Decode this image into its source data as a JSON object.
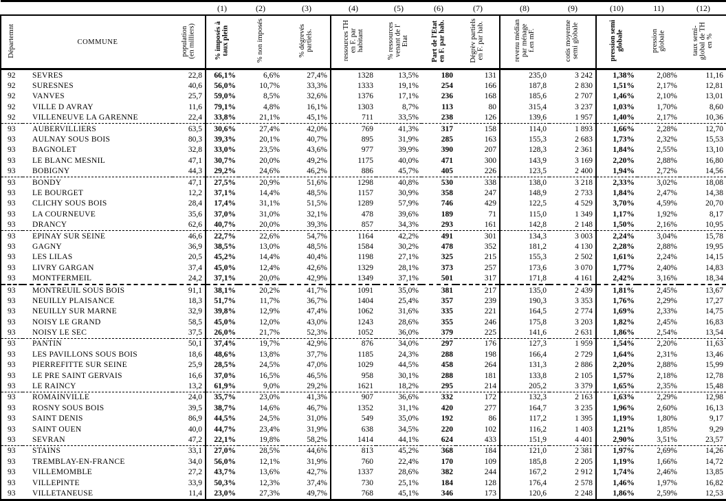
{
  "table": {
    "column_numbers": [
      "",
      "",
      "",
      "(1)",
      "(2)",
      "(3)",
      "(4)",
      "(5)",
      "(6)",
      "(7)",
      "(8)",
      "(9)",
      "(10)",
      "11)",
      "(12)"
    ],
    "headers": [
      "Départemnt",
      "COMMUNE",
      "population\n(en milliers)",
      "% imposés à\ntaux plein",
      "% non imposés",
      "% dégrevés\npartiels.",
      "ressources TH\nen F. par\nhabitant",
      "% ressources\nvenant de l'\nEtat",
      "Part de l'Etat\nen F. par hab.",
      "Dégrèv partiels\nen F. par hab.",
      "revenu médian\npar ménage\nf.en mF.",
      "cotis moyenne\nsemi globale",
      "pression semi\nglobale",
      "pression\nglobale",
      "taux semi-\nglobal de TH\nen %"
    ],
    "rows": [
      [
        "92",
        "SEVRES",
        "22,8",
        "66,1%",
        "6,6%",
        "27,4%",
        "1328",
        "13,5%",
        "180",
        "131",
        "235,0",
        "3 242",
        "1,38%",
        "2,08%",
        "11,16"
      ],
      [
        "92",
        "SURESNES",
        "40,6",
        "56,0%",
        "10,7%",
        "33,3%",
        "1333",
        "19,1%",
        "254",
        "166",
        "187,8",
        "2 830",
        "1,51%",
        "2,17%",
        "12,81"
      ],
      [
        "92",
        "VANVES",
        "25,7",
        "59,0%",
        "8,5%",
        "32,6%",
        "1376",
        "17,1%",
        "236",
        "168",
        "185,6",
        "2 707",
        "1,46%",
        "2,10%",
        "13,01"
      ],
      [
        "92",
        "VILLE D AVRAY",
        "11,6",
        "79,1%",
        "4,8%",
        "16,1%",
        "1303",
        "8,7%",
        "113",
        "80",
        "315,4",
        "3 237",
        "1,03%",
        "1,70%",
        "8,60"
      ],
      [
        "92",
        "VILLENEUVE LA GARENNE",
        "22,4",
        "33,8%",
        "21,1%",
        "45,1%",
        "711",
        "33,5%",
        "238",
        "126",
        "139,6",
        "1 957",
        "1,40%",
        "2,17%",
        "10,36"
      ],
      [
        "93",
        "AUBERVILLIERS",
        "63,5",
        "30,6%",
        "27,4%",
        "42,0%",
        "769",
        "41,3%",
        "317",
        "158",
        "114,0",
        "1 893",
        "1,66%",
        "2,28%",
        "12,70"
      ],
      [
        "93",
        "AULNAY SOUS BOIS",
        "80,3",
        "39,3%",
        "20,1%",
        "40,7%",
        "895",
        "31,9%",
        "285",
        "163",
        "155,3",
        "2 683",
        "1,73%",
        "2,32%",
        "15,53"
      ],
      [
        "93",
        "BAGNOLET",
        "32,8",
        "33,0%",
        "23,5%",
        "43,6%",
        "977",
        "39,9%",
        "390",
        "207",
        "128,3",
        "2 361",
        "1,84%",
        "2,55%",
        "13,10"
      ],
      [
        "93",
        "LE BLANC MESNIL",
        "47,1",
        "30,7%",
        "20,0%",
        "49,2%",
        "1175",
        "40,0%",
        "471",
        "300",
        "143,9",
        "3 169",
        "2,20%",
        "2,88%",
        "16,80"
      ],
      [
        "93",
        "BOBIGNY",
        "44,3",
        "29,2%",
        "24,6%",
        "46,2%",
        "886",
        "45,7%",
        "405",
        "226",
        "123,5",
        "2 400",
        "1,94%",
        "2,72%",
        "14,56"
      ],
      [
        "93",
        "BONDY",
        "47,1",
        "27,5%",
        "20,9%",
        "51,6%",
        "1298",
        "40,8%",
        "530",
        "338",
        "138,0",
        "3 218",
        "2,33%",
        "3,02%",
        "18,08"
      ],
      [
        "93",
        "LE BOURGET",
        "12,2",
        "37,1%",
        "14,4%",
        "48,5%",
        "1157",
        "30,9%",
        "358",
        "247",
        "148,9",
        "2 733",
        "1,84%",
        "2,47%",
        "14,38"
      ],
      [
        "93",
        "CLICHY SOUS BOIS",
        "28,4",
        "17,4%",
        "31,1%",
        "51,5%",
        "1289",
        "57,9%",
        "746",
        "429",
        "122,5",
        "4 529",
        "3,70%",
        "4,59%",
        "20,70"
      ],
      [
        "93",
        "LA COURNEUVE",
        "35,6",
        "37,0%",
        "31,0%",
        "32,1%",
        "478",
        "39,6%",
        "189",
        "71",
        "115,0",
        "1 349",
        "1,17%",
        "1,92%",
        "8,17"
      ],
      [
        "93",
        "DRANCY",
        "62,6",
        "40,7%",
        "20,0%",
        "39,3%",
        "857",
        "34,3%",
        "293",
        "161",
        "142,8",
        "2 148",
        "1,50%",
        "2,16%",
        "10,95"
      ],
      [
        "93",
        "EPINAY SUR SEINE",
        "46,6",
        "22,7%",
        "22,6%",
        "54,7%",
        "1164",
        "42,2%",
        "491",
        "301",
        "134,3",
        "3 003",
        "2,24%",
        "3,04%",
        "15,78"
      ],
      [
        "93",
        "GAGNY",
        "36,9",
        "38,5%",
        "13,0%",
        "48,5%",
        "1584",
        "30,2%",
        "478",
        "352",
        "181,2",
        "4 130",
        "2,28%",
        "2,88%",
        "19,95"
      ],
      [
        "93",
        "LES LILAS",
        "20,5",
        "45,2%",
        "14,4%",
        "40,4%",
        "1198",
        "27,1%",
        "325",
        "215",
        "155,3",
        "2 502",
        "1,61%",
        "2,24%",
        "14,15"
      ],
      [
        "93",
        "LIVRY GARGAN",
        "37,4",
        "45,0%",
        "12,4%",
        "42,6%",
        "1329",
        "28,1%",
        "373",
        "257",
        "173,6",
        "3 070",
        "1,77%",
        "2,40%",
        "14,83"
      ],
      [
        "93",
        "MONTFERMEIL",
        "24,2",
        "37,1%",
        "20,0%",
        "42,9%",
        "1349",
        "37,1%",
        "501",
        "317",
        "171,8",
        "4 161",
        "2,42%",
        "3,16%",
        "18,34"
      ],
      [
        "93",
        "MONTREUIL SOUS BOIS",
        "91,1",
        "38,1%",
        "20,2%",
        "41,7%",
        "1091",
        "35,0%",
        "381",
        "217",
        "135,0",
        "2 439",
        "1,81%",
        "2,45%",
        "13,67"
      ],
      [
        "93",
        "NEUILLY PLAISANCE",
        "18,3",
        "51,7%",
        "11,7%",
        "36,7%",
        "1404",
        "25,4%",
        "357",
        "239",
        "190,3",
        "3 353",
        "1,76%",
        "2,29%",
        "17,27"
      ],
      [
        "93",
        "NEUILLY SUR MARNE",
        "32,9",
        "39,8%",
        "12,9%",
        "47,4%",
        "1062",
        "31,6%",
        "335",
        "221",
        "164,5",
        "2 774",
        "1,69%",
        "2,33%",
        "14,75"
      ],
      [
        "93",
        "NOISY LE GRAND",
        "58,5",
        "45,0%",
        "12,0%",
        "43,0%",
        "1243",
        "28,6%",
        "355",
        "246",
        "175,8",
        "3 203",
        "1,82%",
        "2,45%",
        "16,83"
      ],
      [
        "93",
        "NOISY LE SEC",
        "37,5",
        "26,0%",
        "21,7%",
        "52,3%",
        "1052",
        "36,0%",
        "379",
        "225",
        "141,6",
        "2 631",
        "1,86%",
        "2,54%",
        "13,54"
      ],
      [
        "93",
        "PANTIN",
        "50,1",
        "37,4%",
        "19,7%",
        "42,9%",
        "876",
        "34,0%",
        "297",
        "176",
        "127,3",
        "1 959",
        "1,54%",
        "2,20%",
        "11,63"
      ],
      [
        "93",
        "LES PAVILLONS SOUS BOIS",
        "18,6",
        "48,6%",
        "13,8%",
        "37,7%",
        "1185",
        "24,3%",
        "288",
        "198",
        "166,4",
        "2 729",
        "1,64%",
        "2,31%",
        "13,46"
      ],
      [
        "93",
        "PIERREFITTE SUR SEINE",
        "25,9",
        "28,5%",
        "24,5%",
        "47,0%",
        "1029",
        "44,5%",
        "458",
        "264",
        "131,3",
        "2 886",
        "2,20%",
        "2,88%",
        "15,99"
      ],
      [
        "93",
        "LE PRE SAINT GERVAIS",
        "16,6",
        "37,0%",
        "16,5%",
        "46,5%",
        "958",
        "30,1%",
        "288",
        "181",
        "133,8",
        "2 105",
        "1,57%",
        "2,18%",
        "12,78"
      ],
      [
        "93",
        "LE RAINCY",
        "13,2",
        "61,9%",
        "9,0%",
        "29,2%",
        "1621",
        "18,2%",
        "295",
        "214",
        "205,2",
        "3 379",
        "1,65%",
        "2,35%",
        "15,48"
      ],
      [
        "93",
        "ROMAINVILLE",
        "24,0",
        "35,7%",
        "23,0%",
        "41,3%",
        "907",
        "36,6%",
        "332",
        "172",
        "132,3",
        "2 163",
        "1,63%",
        "2,29%",
        "12,98"
      ],
      [
        "93",
        "ROSNY SOUS BOIS",
        "39,5",
        "38,7%",
        "14,6%",
        "46,7%",
        "1352",
        "31,1%",
        "420",
        "277",
        "164,7",
        "3 235",
        "1,96%",
        "2,60%",
        "16,13"
      ],
      [
        "93",
        "SAINT DENIS",
        "86,9",
        "44,5%",
        "24,5%",
        "31,0%",
        "549",
        "35,0%",
        "192",
        "86",
        "117,2",
        "1 395",
        "1,19%",
        "1,80%",
        "9,17"
      ],
      [
        "93",
        "SAINT OUEN",
        "40,0",
        "44,7%",
        "23,4%",
        "31,9%",
        "638",
        "34,5%",
        "220",
        "102",
        "116,2",
        "1 403",
        "1,21%",
        "1,85%",
        "9,29"
      ],
      [
        "93",
        "SEVRAN",
        "47,2",
        "22,1%",
        "19,8%",
        "58,2%",
        "1414",
        "44,1%",
        "624",
        "433",
        "151,9",
        "4 401",
        "2,90%",
        "3,51%",
        "23,57"
      ],
      [
        "93",
        "STAINS",
        "33,1",
        "27,0%",
        "28,5%",
        "44,6%",
        "813",
        "45,2%",
        "368",
        "184",
        "121,0",
        "2 381",
        "1,97%",
        "2,69%",
        "14,26"
      ],
      [
        "93",
        "TREMBLAY-EN-FRANCE",
        "34,0",
        "56,0%",
        "12,1%",
        "31,9%",
        "760",
        "22,4%",
        "170",
        "109",
        "185,8",
        "2 205",
        "1,19%",
        "1,66%",
        "14,72"
      ],
      [
        "93",
        "VILLEMOMBLE",
        "27,2",
        "43,7%",
        "13,6%",
        "42,7%",
        "1337",
        "28,6%",
        "382",
        "244",
        "167,2",
        "2 912",
        "1,74%",
        "2,46%",
        "13,85"
      ],
      [
        "93",
        "VILLEPINTE",
        "33,9",
        "50,3%",
        "12,3%",
        "37,4%",
        "730",
        "25,1%",
        "184",
        "128",
        "176,4",
        "2 578",
        "1,46%",
        "1,97%",
        "16,82"
      ],
      [
        "93",
        "VILLETANEUSE",
        "11,4",
        "23,0%",
        "27,3%",
        "49,7%",
        "768",
        "45,1%",
        "346",
        "173",
        "120,6",
        "2 248",
        "1,86%",
        "2,59%",
        "12,53"
      ]
    ]
  }
}
